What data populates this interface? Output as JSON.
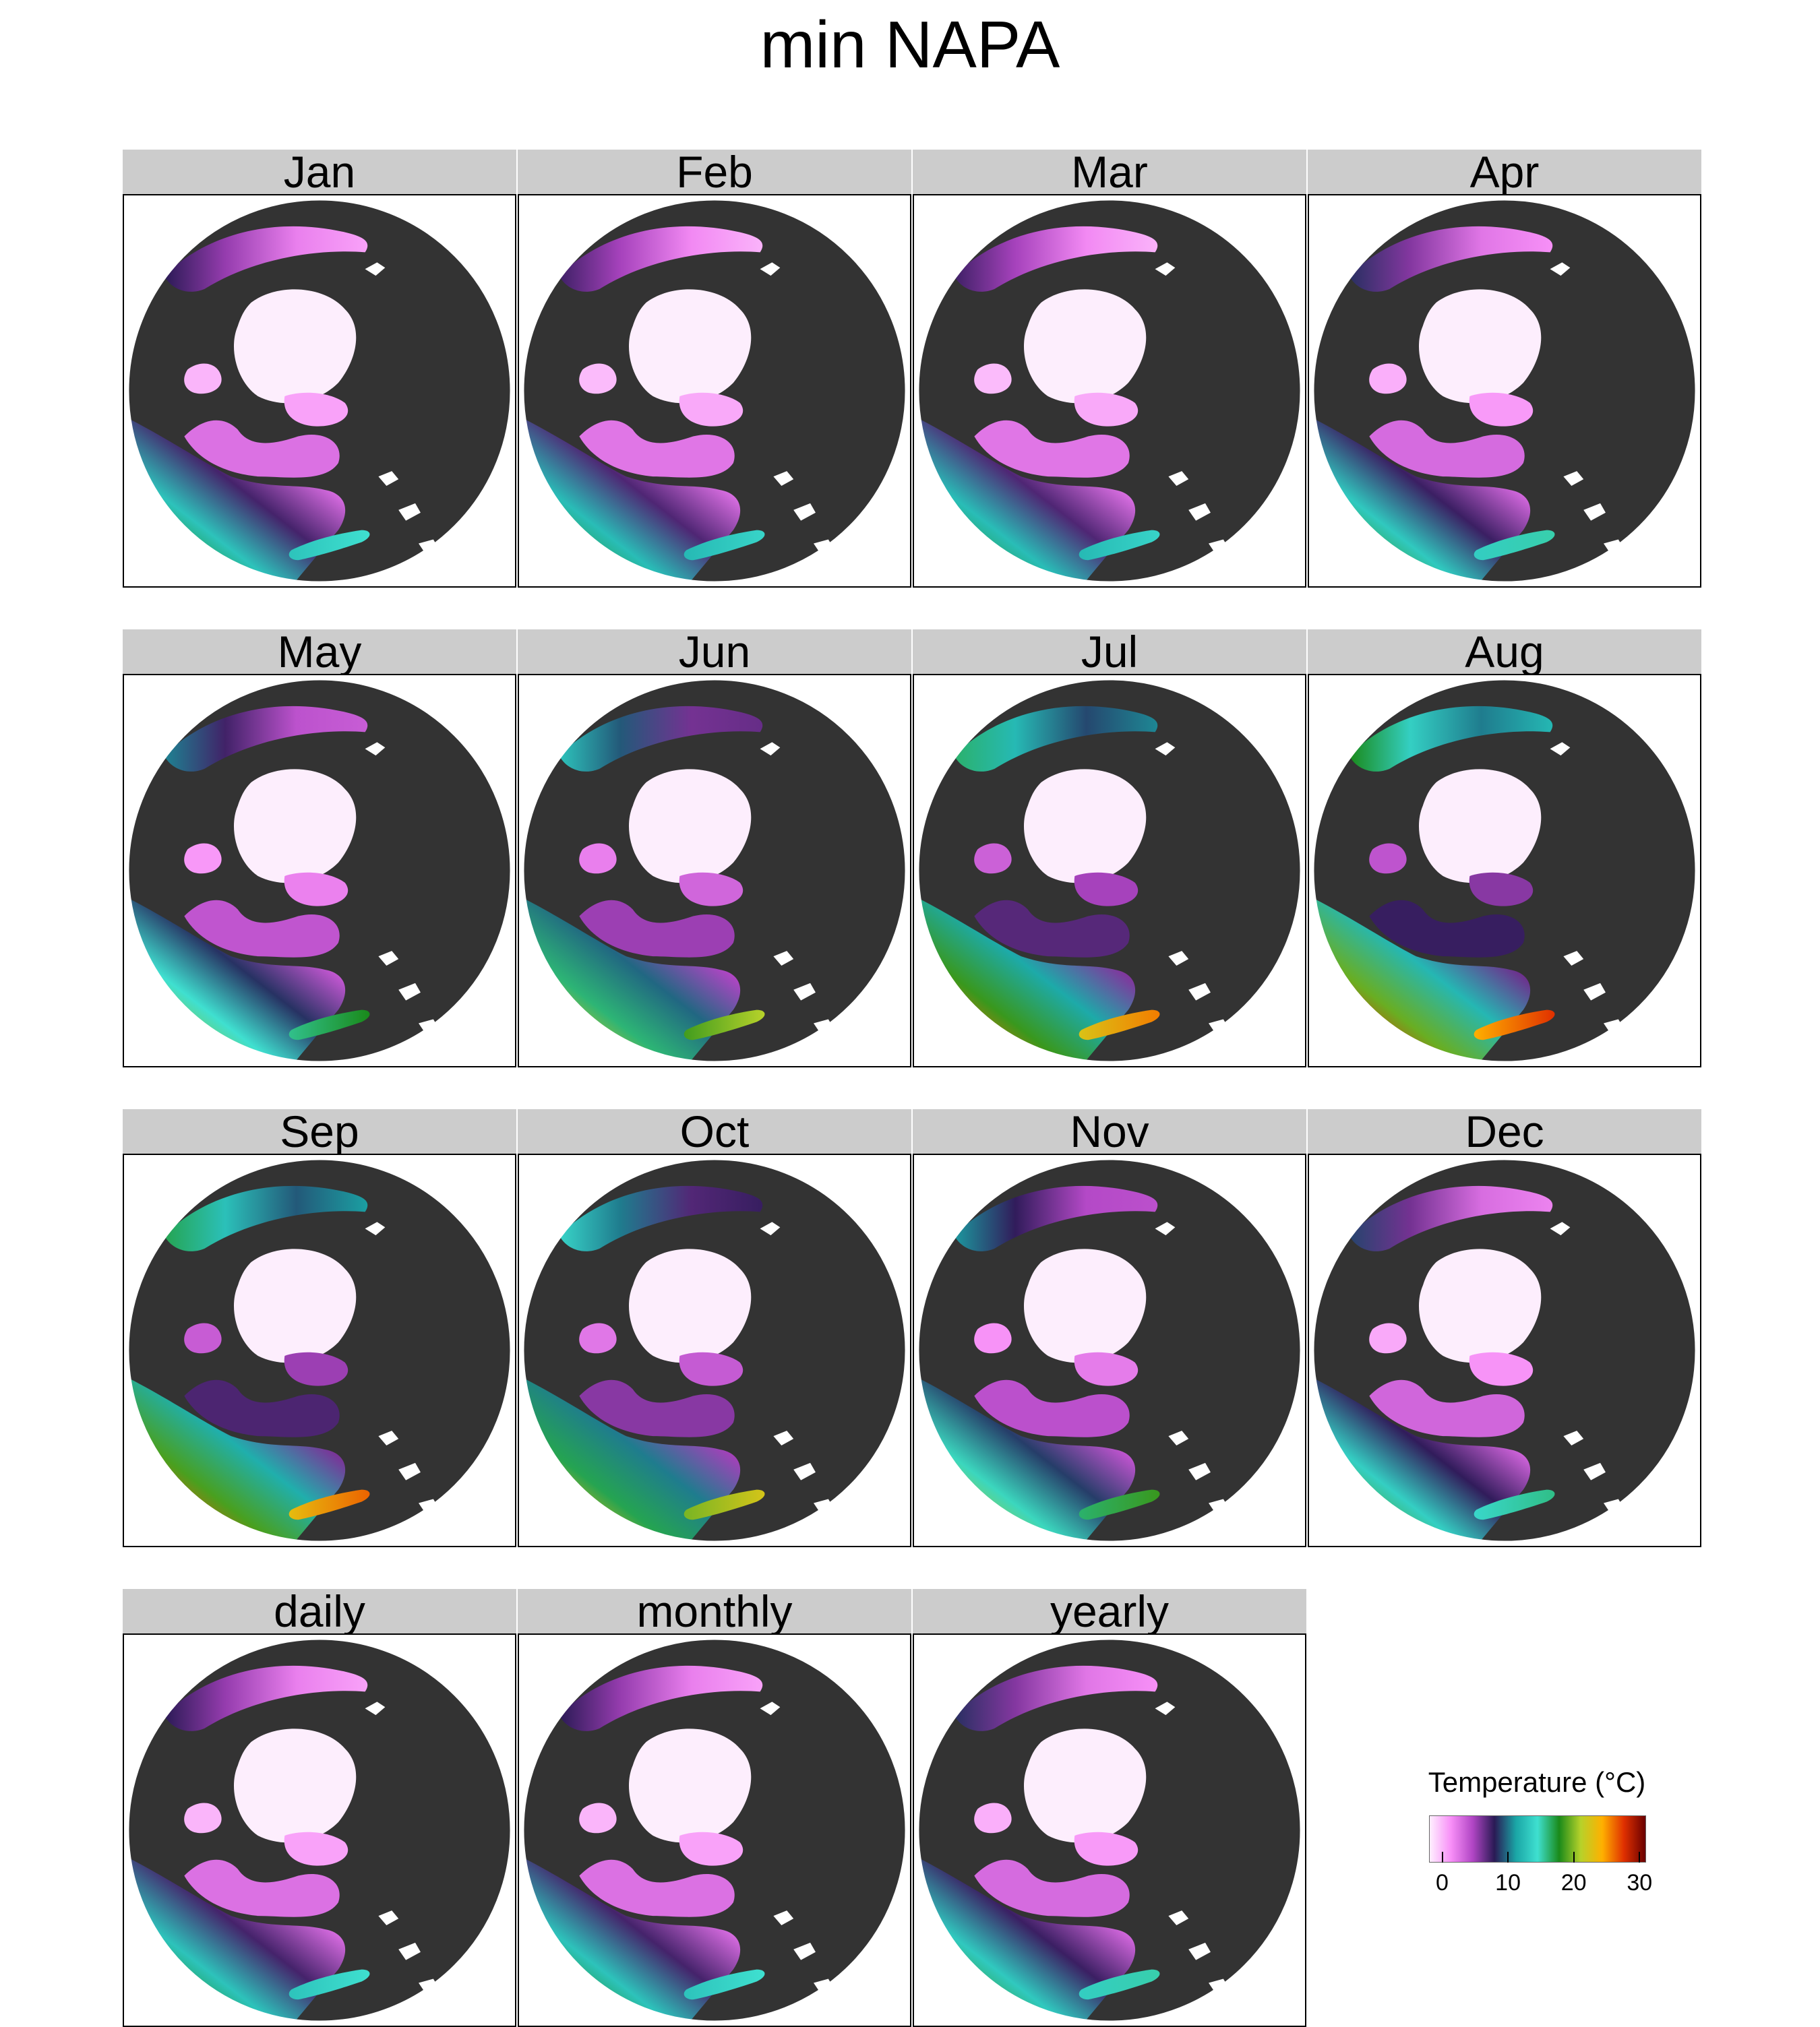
{
  "title": "min NAPA",
  "panels": [
    {
      "label": "Jan",
      "warmth": 0
    },
    {
      "label": "Feb",
      "warmth": -0.05
    },
    {
      "label": "Mar",
      "warmth": -0.05
    },
    {
      "label": "Apr",
      "warmth": 0.05
    },
    {
      "label": "May",
      "warmth": 0.25
    },
    {
      "label": "Jun",
      "warmth": 0.5
    },
    {
      "label": "Jul",
      "warmth": 0.85
    },
    {
      "label": "Aug",
      "warmth": 1.0
    },
    {
      "label": "Sep",
      "warmth": 0.9
    },
    {
      "label": "Oct",
      "warmth": 0.6
    },
    {
      "label": "Nov",
      "warmth": 0.3
    },
    {
      "label": "Dec",
      "warmth": 0.1
    },
    {
      "label": "daily",
      "warmth": 0
    },
    {
      "label": "monthly",
      "warmth": 0
    },
    {
      "label": "yearly",
      "warmth": 0.05
    }
  ],
  "legend": {
    "title": "Temperature (°C)",
    "ticks": [
      {
        "label": "0",
        "value": 0
      },
      {
        "label": "10",
        "value": 10
      },
      {
        "label": "20",
        "value": 20
      },
      {
        "label": "30",
        "value": 30
      }
    ],
    "range": [
      -2,
      31
    ],
    "colors": [
      "#fff0ff",
      "#f78ef7",
      "#b045c4",
      "#2a1a55",
      "#1aa6a6",
      "#3fe0d0",
      "#1a8a1a",
      "#b7d22a",
      "#ffb000",
      "#e03000",
      "#6a0000"
    ]
  },
  "map_colors": {
    "land": "#333333",
    "background": "#ffffff",
    "ice": "#fdeefd"
  }
}
